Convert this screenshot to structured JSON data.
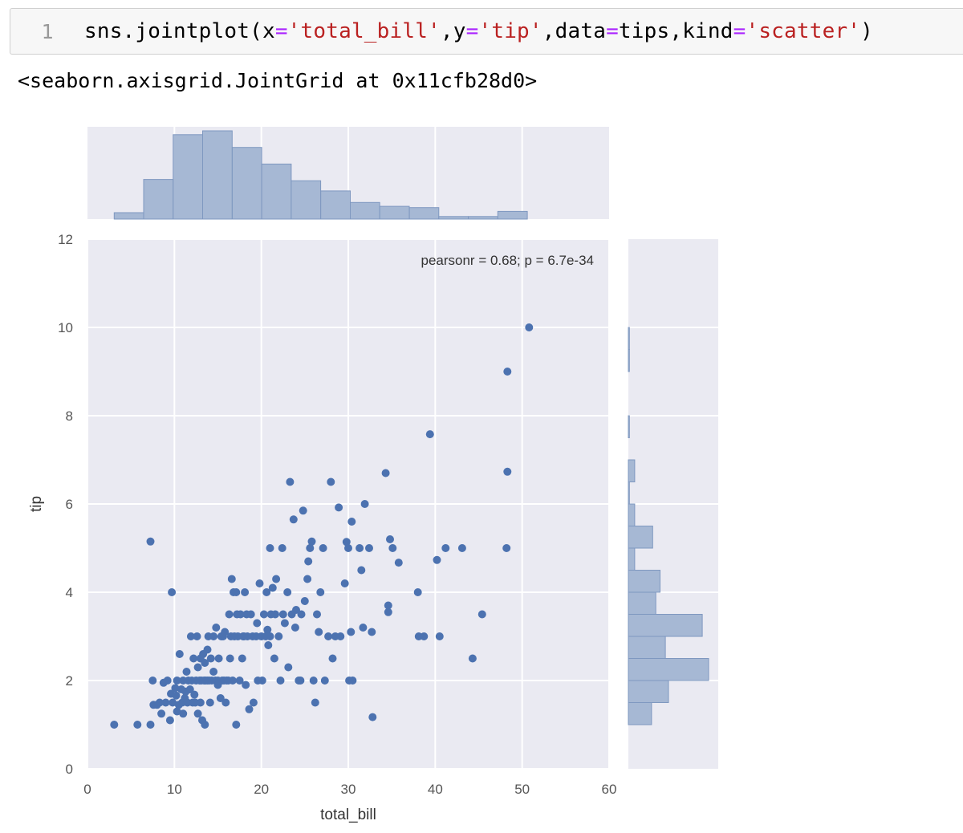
{
  "cell": {
    "line_number": "1",
    "code_tokens": [
      {
        "text": "sns.jointplot(x",
        "cls": ""
      },
      {
        "text": "=",
        "cls": "tk-op"
      },
      {
        "text": "'total_bill'",
        "cls": "tk-str"
      },
      {
        "text": ",y",
        "cls": ""
      },
      {
        "text": "=",
        "cls": "tk-op"
      },
      {
        "text": "'tip'",
        "cls": "tk-str"
      },
      {
        "text": ",data",
        "cls": ""
      },
      {
        "text": "=",
        "cls": "tk-op"
      },
      {
        "text": "tips,kind",
        "cls": ""
      },
      {
        "text": "=",
        "cls": "tk-op"
      },
      {
        "text": "'scatter'",
        "cls": "tk-str"
      },
      {
        "text": ")",
        "cls": ""
      }
    ],
    "output": "<seaborn.axisgrid.JointGrid at 0x11cfb28d0>"
  },
  "colors": {
    "axes_bg": "#eaeaf2",
    "grid": "#ffffff",
    "point": "#4c72b0",
    "hist_fill": "#a6b8d4",
    "hist_edge": "#7f98c0",
    "tick_text": "#555555",
    "label_text": "#333333"
  },
  "chart_data": {
    "type": "scatter",
    "title": "",
    "xlabel": "total_bill",
    "ylabel": "tip",
    "xlim": [
      0,
      60
    ],
    "ylim": [
      0,
      12
    ],
    "xticks": [
      "0",
      "10",
      "20",
      "30",
      "40",
      "50",
      "60"
    ],
    "yticks": [
      "0",
      "2",
      "4",
      "6",
      "8",
      "10",
      "12"
    ],
    "annotation": "pearsonr = 0.68; p = 6.7e-34",
    "grid": true,
    "points": [
      [
        3.07,
        1.0
      ],
      [
        5.75,
        1.0
      ],
      [
        7.25,
        1.0
      ],
      [
        7.25,
        5.15
      ],
      [
        7.5,
        2.0
      ],
      [
        7.6,
        1.45
      ],
      [
        8.0,
        1.45
      ],
      [
        8.3,
        1.5
      ],
      [
        8.5,
        1.25
      ],
      [
        8.75,
        1.95
      ],
      [
        9.0,
        1.5
      ],
      [
        9.2,
        2.0
      ],
      [
        9.5,
        1.1
      ],
      [
        9.6,
        1.7
      ],
      [
        9.7,
        4.0
      ],
      [
        9.8,
        1.5
      ],
      [
        10.1,
        1.83
      ],
      [
        10.2,
        1.66
      ],
      [
        10.3,
        1.3
      ],
      [
        10.3,
        2.0
      ],
      [
        10.5,
        1.45
      ],
      [
        10.6,
        2.6
      ],
      [
        10.8,
        1.8
      ],
      [
        10.9,
        1.5
      ],
      [
        11.0,
        1.25
      ],
      [
        11.0,
        2.0
      ],
      [
        11.2,
        1.6
      ],
      [
        11.3,
        1.75
      ],
      [
        11.4,
        2.2
      ],
      [
        11.5,
        1.5
      ],
      [
        11.6,
        2.0
      ],
      [
        11.8,
        1.8
      ],
      [
        11.9,
        3.0
      ],
      [
        12.0,
        2.0
      ],
      [
        12.1,
        1.5
      ],
      [
        12.2,
        2.5
      ],
      [
        12.3,
        1.68
      ],
      [
        12.4,
        1.5
      ],
      [
        12.5,
        2.0
      ],
      [
        12.6,
        3.0
      ],
      [
        12.7,
        2.3
      ],
      [
        12.7,
        1.25
      ],
      [
        12.9,
        2.0
      ],
      [
        13.0,
        2.5
      ],
      [
        13.0,
        1.5
      ],
      [
        13.1,
        2.0
      ],
      [
        13.2,
        1.1
      ],
      [
        13.3,
        2.6
      ],
      [
        13.4,
        2.0
      ],
      [
        13.5,
        1.0
      ],
      [
        13.5,
        2.4
      ],
      [
        13.6,
        2.0
      ],
      [
        13.8,
        2.0
      ],
      [
        13.8,
        2.7
      ],
      [
        13.9,
        3.0
      ],
      [
        14.0,
        2.0
      ],
      [
        14.1,
        1.5
      ],
      [
        14.2,
        2.5
      ],
      [
        14.3,
        2.0
      ],
      [
        14.5,
        2.2
      ],
      [
        14.5,
        3.0
      ],
      [
        14.7,
        2.0
      ],
      [
        14.8,
        3.2
      ],
      [
        15.0,
        2.0
      ],
      [
        15.0,
        1.9
      ],
      [
        15.1,
        2.5
      ],
      [
        15.3,
        1.6
      ],
      [
        15.4,
        3.0
      ],
      [
        15.5,
        2.0
      ],
      [
        15.6,
        3.0
      ],
      [
        15.7,
        2.0
      ],
      [
        15.8,
        3.1
      ],
      [
        15.9,
        1.5
      ],
      [
        16.0,
        2.0
      ],
      [
        16.2,
        2.0
      ],
      [
        16.3,
        3.5
      ],
      [
        16.4,
        2.5
      ],
      [
        16.5,
        3.0
      ],
      [
        16.6,
        4.3
      ],
      [
        16.7,
        2.0
      ],
      [
        16.8,
        4.0
      ],
      [
        16.9,
        3.0
      ],
      [
        17.1,
        1.0
      ],
      [
        17.1,
        4.0
      ],
      [
        17.2,
        3.5
      ],
      [
        17.3,
        3.0
      ],
      [
        17.5,
        2.0
      ],
      [
        17.6,
        3.5
      ],
      [
        17.8,
        2.5
      ],
      [
        17.9,
        3.0
      ],
      [
        18.0,
        3.0
      ],
      [
        18.1,
        4.0
      ],
      [
        18.2,
        1.9
      ],
      [
        18.3,
        3.5
      ],
      [
        18.4,
        3.0
      ],
      [
        18.6,
        1.35
      ],
      [
        18.8,
        3.5
      ],
      [
        19.0,
        3.0
      ],
      [
        19.1,
        1.5
      ],
      [
        19.4,
        3.0
      ],
      [
        19.5,
        3.3
      ],
      [
        19.6,
        2.0
      ],
      [
        19.8,
        4.2
      ],
      [
        20.0,
        3.0
      ],
      [
        20.1,
        2.0
      ],
      [
        20.3,
        3.5
      ],
      [
        20.5,
        3.0
      ],
      [
        20.6,
        4.0
      ],
      [
        20.7,
        3.15
      ],
      [
        20.8,
        2.8
      ],
      [
        21.0,
        5.0
      ],
      [
        21.0,
        3.0
      ],
      [
        21.1,
        3.5
      ],
      [
        21.3,
        4.1
      ],
      [
        21.5,
        2.5
      ],
      [
        21.6,
        3.5
      ],
      [
        21.7,
        4.3
      ],
      [
        22.0,
        3.0
      ],
      [
        22.2,
        2.0
      ],
      [
        22.4,
        5.0
      ],
      [
        22.5,
        3.5
      ],
      [
        22.7,
        3.3
      ],
      [
        23.0,
        4.0
      ],
      [
        23.1,
        2.3
      ],
      [
        23.3,
        6.5
      ],
      [
        23.5,
        3.5
      ],
      [
        23.7,
        5.65
      ],
      [
        23.9,
        3.2
      ],
      [
        24.0,
        3.6
      ],
      [
        24.3,
        2.0
      ],
      [
        24.5,
        2.0
      ],
      [
        24.6,
        3.5
      ],
      [
        24.8,
        5.85
      ],
      [
        25.0,
        3.8
      ],
      [
        25.3,
        4.3
      ],
      [
        25.4,
        4.7
      ],
      [
        25.6,
        5.0
      ],
      [
        25.8,
        5.15
      ],
      [
        26.0,
        2.0
      ],
      [
        26.2,
        1.5
      ],
      [
        26.4,
        3.5
      ],
      [
        26.6,
        3.1
      ],
      [
        26.8,
        4.0
      ],
      [
        27.1,
        5.0
      ],
      [
        27.3,
        2.0
      ],
      [
        27.7,
        3.0
      ],
      [
        28.0,
        6.5
      ],
      [
        28.2,
        2.5
      ],
      [
        28.5,
        3.0
      ],
      [
        28.9,
        5.92
      ],
      [
        29.1,
        3.0
      ],
      [
        29.6,
        4.2
      ],
      [
        29.8,
        5.14
      ],
      [
        30.0,
        5.0
      ],
      [
        30.1,
        2.0
      ],
      [
        30.3,
        3.1
      ],
      [
        30.4,
        5.6
      ],
      [
        30.5,
        2.0
      ],
      [
        31.3,
        5.0
      ],
      [
        31.5,
        4.5
      ],
      [
        31.7,
        3.2
      ],
      [
        31.9,
        6.0
      ],
      [
        32.4,
        5.0
      ],
      [
        32.7,
        3.1
      ],
      [
        32.8,
        1.17
      ],
      [
        34.3,
        6.7
      ],
      [
        34.6,
        3.55
      ],
      [
        34.6,
        3.7
      ],
      [
        34.8,
        5.2
      ],
      [
        35.1,
        5.0
      ],
      [
        35.8,
        4.67
      ],
      [
        38.0,
        4.0
      ],
      [
        38.1,
        3.0
      ],
      [
        38.7,
        3.0
      ],
      [
        39.4,
        7.58
      ],
      [
        40.2,
        4.73
      ],
      [
        40.5,
        3.0
      ],
      [
        41.2,
        5.0
      ],
      [
        43.1,
        5.0
      ],
      [
        44.3,
        2.5
      ],
      [
        45.4,
        3.5
      ],
      [
        48.2,
        5.0
      ],
      [
        48.3,
        6.73
      ],
      [
        48.3,
        9.0
      ],
      [
        50.8,
        10.0
      ]
    ],
    "x_histogram": {
      "bin_edges": [
        3.07,
        6.46,
        9.86,
        13.25,
        16.65,
        20.04,
        23.44,
        26.83,
        30.23,
        33.62,
        37.02,
        40.41,
        43.81,
        47.2,
        50.6
      ],
      "counts": [
        5,
        31,
        66,
        69,
        56,
        43,
        30,
        22,
        13,
        10,
        9,
        2,
        2,
        6
      ]
    },
    "y_histogram": {
      "bin_edges": [
        1.0,
        1.5,
        2.0,
        2.5,
        3.0,
        3.5,
        4.0,
        4.5,
        5.0,
        5.5,
        6.0,
        6.5,
        7.0,
        7.5,
        8.0,
        8.5,
        9.0,
        9.5,
        10.0
      ],
      "counts": [
        22,
        38,
        76,
        35,
        70,
        26,
        30,
        6,
        23,
        6,
        1,
        6,
        0,
        1,
        0,
        0,
        1,
        1
      ]
    }
  }
}
